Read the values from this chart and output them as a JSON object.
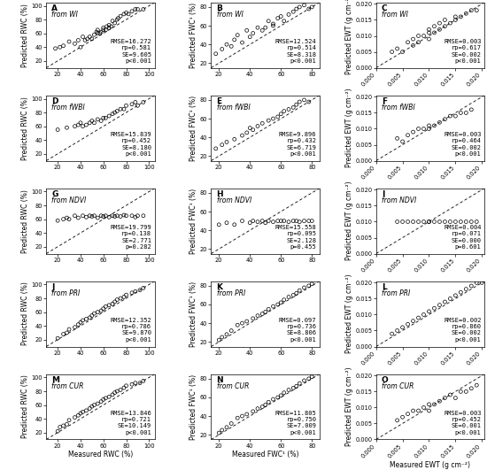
{
  "panels": [
    {
      "label": "A",
      "source": "from WI",
      "col": 0,
      "row": 0,
      "rmse": "RMSE=16.272",
      "rp": "rp=0.581",
      "se": "SE=9.605",
      "p": "p<0.001",
      "xtype": "RWC",
      "px": [
        18,
        22,
        25,
        30,
        35,
        38,
        40,
        42,
        44,
        46,
        48,
        50,
        52,
        54,
        55,
        55,
        57,
        58,
        60,
        60,
        62,
        63,
        65,
        65,
        67,
        68,
        70,
        72,
        73,
        75,
        78,
        80,
        82,
        85,
        88,
        90,
        95
      ],
      "py": [
        38,
        40,
        42,
        48,
        45,
        50,
        40,
        55,
        50,
        52,
        55,
        52,
        58,
        62,
        60,
        65,
        60,
        62,
        65,
        68,
        65,
        70,
        68,
        72,
        70,
        78,
        75,
        80,
        82,
        85,
        88,
        90,
        88,
        92,
        95,
        95,
        95
      ]
    },
    {
      "label": "B",
      "source": "from WI",
      "col": 1,
      "row": 0,
      "rmse": "RMSE=12.524",
      "rp": "rp=0.514",
      "se": "SE=8.318",
      "p": "p<0.001",
      "xtype": "FWC",
      "px": [
        18,
        22,
        25,
        28,
        30,
        32,
        35,
        38,
        40,
        42,
        45,
        48,
        50,
        52,
        55,
        55,
        58,
        60,
        62,
        65,
        68,
        70,
        72,
        75,
        78,
        80
      ],
      "py": [
        30,
        35,
        40,
        38,
        45,
        50,
        42,
        55,
        48,
        52,
        58,
        55,
        58,
        65,
        60,
        62,
        68,
        70,
        65,
        72,
        75,
        78,
        80,
        82,
        78,
        80
      ]
    },
    {
      "label": "C",
      "source": "from WI",
      "col": 2,
      "row": 0,
      "rmse": "RMSE=0.003",
      "rp": "rp=0.617",
      "se": "SE=0.002",
      "p": "p<0.001",
      "xtype": "EWT",
      "px": [
        0.003,
        0.004,
        0.005,
        0.006,
        0.007,
        0.007,
        0.008,
        0.008,
        0.009,
        0.01,
        0.01,
        0.01,
        0.011,
        0.011,
        0.012,
        0.012,
        0.013,
        0.013,
        0.014,
        0.015,
        0.015,
        0.016,
        0.017,
        0.018,
        0.019
      ],
      "py": [
        0.005,
        0.006,
        0.005,
        0.008,
        0.007,
        0.009,
        0.01,
        0.008,
        0.01,
        0.009,
        0.011,
        0.012,
        0.011,
        0.013,
        0.012,
        0.014,
        0.013,
        0.015,
        0.014,
        0.015,
        0.016,
        0.016,
        0.017,
        0.018,
        0.018
      ]
    },
    {
      "label": "D",
      "source": "from fWBI",
      "col": 0,
      "row": 1,
      "rmse": "RMSE=15.839",
      "rp": "rp=0.452",
      "se": "SE=8.180",
      "p": "p<0.001",
      "xtype": "RWC",
      "px": [
        20,
        28,
        35,
        38,
        40,
        42,
        45,
        48,
        50,
        52,
        55,
        58,
        60,
        62,
        65,
        68,
        70,
        72,
        75,
        78,
        80,
        85,
        88,
        90,
        95
      ],
      "py": [
        55,
        58,
        60,
        62,
        65,
        60,
        62,
        65,
        68,
        65,
        70,
        68,
        72,
        72,
        75,
        78,
        80,
        82,
        85,
        85,
        90,
        92,
        95,
        90,
        95
      ]
    },
    {
      "label": "E",
      "source": "from fWBI",
      "col": 1,
      "row": 1,
      "rmse": "RMSE=9.896",
      "rp": "rp=0.432",
      "se": "SE=6.719",
      "p": "p<0.001",
      "xtype": "FWC",
      "px": [
        18,
        22,
        25,
        30,
        35,
        38,
        40,
        42,
        45,
        48,
        52,
        55,
        58,
        60,
        62,
        65,
        68,
        70,
        72,
        75,
        78
      ],
      "py": [
        28,
        32,
        35,
        38,
        42,
        45,
        50,
        48,
        52,
        55,
        58,
        60,
        62,
        65,
        68,
        70,
        72,
        75,
        78,
        80,
        78
      ]
    },
    {
      "label": "F",
      "source": "from fWBI",
      "col": 2,
      "row": 1,
      "rmse": "RMSE=0.003",
      "rp": "rp=0.464",
      "se": "SE=0.002",
      "p": "p<0.001",
      "xtype": "EWT",
      "px": [
        0.004,
        0.005,
        0.006,
        0.007,
        0.008,
        0.009,
        0.01,
        0.01,
        0.011,
        0.012,
        0.013,
        0.014,
        0.015,
        0.016,
        0.017,
        0.018
      ],
      "py": [
        0.007,
        0.006,
        0.008,
        0.009,
        0.01,
        0.01,
        0.01,
        0.011,
        0.011,
        0.012,
        0.013,
        0.014,
        0.014,
        0.015,
        0.015,
        0.016
      ]
    },
    {
      "label": "G",
      "source": "from NDVI",
      "col": 0,
      "row": 2,
      "rmse": "RMSE=19.799",
      "rp": "rp=0.138",
      "se": "SE=2.771",
      "p": "p=0.282",
      "xtype": "RWC",
      "px": [
        20,
        25,
        28,
        30,
        35,
        38,
        42,
        45,
        48,
        50,
        52,
        55,
        58,
        60,
        62,
        65,
        68,
        70,
        72,
        75,
        78,
        80,
        85,
        88,
        90,
        95
      ],
      "py": [
        58,
        60,
        62,
        60,
        65,
        62,
        65,
        63,
        65,
        64,
        65,
        62,
        65,
        64,
        65,
        63,
        65,
        64,
        65,
        64,
        66,
        65,
        65,
        63,
        65,
        65
      ]
    },
    {
      "label": "H",
      "source": "from NDVI",
      "col": 1,
      "row": 2,
      "rmse": "RMSE=15.558",
      "rp": "rp=0.095",
      "se": "SE=2.128",
      "p": "p=0.455",
      "xtype": "FWC",
      "px": [
        20,
        25,
        30,
        35,
        40,
        42,
        45,
        48,
        50,
        52,
        55,
        58,
        60,
        62,
        65,
        68,
        70,
        72,
        75,
        78,
        80
      ],
      "py": [
        46,
        48,
        46,
        50,
        48,
        50,
        49,
        50,
        48,
        50,
        49,
        50,
        50,
        50,
        49,
        50,
        50,
        49,
        50,
        50,
        50
      ]
    },
    {
      "label": "I",
      "source": "from NDVI",
      "col": 2,
      "row": 2,
      "rmse": "RMSE=0.004",
      "rp": "rp=0.071",
      "se": "SE=0.000",
      "p": "p=0.601",
      "xtype": "EWT",
      "px": [
        0.004,
        0.005,
        0.006,
        0.007,
        0.008,
        0.009,
        0.01,
        0.01,
        0.011,
        0.012,
        0.013,
        0.014,
        0.015,
        0.016,
        0.017,
        0.018,
        0.019
      ],
      "py": [
        0.01,
        0.01,
        0.01,
        0.01,
        0.01,
        0.01,
        0.01,
        0.01,
        0.01,
        0.01,
        0.01,
        0.01,
        0.01,
        0.01,
        0.01,
        0.01,
        0.01
      ]
    },
    {
      "label": "J",
      "source": "from PRI",
      "col": 0,
      "row": 3,
      "rmse": "RMSE=12.352",
      "rp": "rp=0.786",
      "se": "SE=9.870",
      "p": "p<0.001",
      "xtype": "RWC",
      "px": [
        20,
        25,
        28,
        30,
        35,
        38,
        40,
        42,
        45,
        48,
        50,
        52,
        55,
        58,
        60,
        62,
        65,
        68,
        70,
        72,
        75,
        78,
        80,
        85,
        88,
        92,
        95
      ],
      "py": [
        22,
        28,
        30,
        35,
        38,
        42,
        45,
        48,
        50,
        52,
        55,
        58,
        60,
        62,
        65,
        68,
        70,
        72,
        75,
        78,
        80,
        82,
        85,
        88,
        90,
        92,
        95
      ]
    },
    {
      "label": "K",
      "source": "from PRI",
      "col": 1,
      "row": 3,
      "rmse": "RMSE=0.097",
      "rp": "rp=0.736",
      "se": "SE=8.806",
      "p": "p<0.001",
      "xtype": "FWC",
      "px": [
        20,
        22,
        25,
        28,
        32,
        35,
        38,
        42,
        45,
        48,
        50,
        52,
        55,
        58,
        60,
        62,
        65,
        68,
        70,
        72,
        75,
        78,
        80
      ],
      "py": [
        22,
        25,
        28,
        32,
        38,
        40,
        42,
        45,
        48,
        50,
        52,
        55,
        58,
        60,
        62,
        65,
        68,
        70,
        72,
        75,
        78,
        80,
        82
      ]
    },
    {
      "label": "L",
      "source": "from PRI",
      "col": 2,
      "row": 3,
      "rmse": "RMSE=0.002",
      "rp": "rp=0.860",
      "se": "SE=0.002",
      "p": "p<0.001",
      "xtype": "EWT",
      "px": [
        0.003,
        0.004,
        0.005,
        0.006,
        0.007,
        0.008,
        0.009,
        0.01,
        0.011,
        0.012,
        0.013,
        0.014,
        0.015,
        0.016,
        0.017,
        0.018,
        0.019,
        0.02
      ],
      "py": [
        0.004,
        0.005,
        0.006,
        0.007,
        0.008,
        0.009,
        0.01,
        0.011,
        0.012,
        0.013,
        0.014,
        0.015,
        0.016,
        0.017,
        0.018,
        0.019,
        0.02,
        0.02
      ]
    },
    {
      "label": "M",
      "source": "from CUR",
      "col": 0,
      "row": 4,
      "rmse": "RMSE=13.846",
      "rp": "rp=0.721",
      "se": "SE=10.149",
      "p": "p<0.001",
      "xtype": "RWC",
      "px": [
        20,
        22,
        25,
        28,
        30,
        35,
        38,
        40,
        42,
        45,
        48,
        50,
        52,
        55,
        58,
        60,
        62,
        65,
        68,
        70,
        72,
        75,
        78,
        80,
        85,
        88,
        92,
        95
      ],
      "py": [
        22,
        28,
        30,
        32,
        38,
        42,
        45,
        48,
        50,
        52,
        55,
        58,
        60,
        62,
        65,
        68,
        70,
        72,
        75,
        78,
        80,
        82,
        85,
        88,
        90,
        92,
        92,
        95
      ]
    },
    {
      "label": "N",
      "source": "from CUR",
      "col": 1,
      "row": 4,
      "rmse": "RMSE=11.805",
      "rp": "rp=0.750",
      "se": "SE=7.009",
      "p": "p<0.001",
      "xtype": "FWC",
      "px": [
        20,
        22,
        25,
        28,
        32,
        35,
        38,
        42,
        45,
        48,
        50,
        52,
        55,
        58,
        60,
        62,
        65,
        68,
        70,
        72,
        75,
        78,
        80
      ],
      "py": [
        22,
        25,
        28,
        32,
        38,
        40,
        42,
        45,
        48,
        50,
        52,
        55,
        58,
        60,
        62,
        65,
        68,
        70,
        72,
        75,
        78,
        80,
        82
      ]
    },
    {
      "label": "O",
      "source": "from CUR",
      "col": 2,
      "row": 4,
      "rmse": "RMSE=0.003",
      "rp": "rp=0.452",
      "se": "SE=0.001",
      "p": "p<0.001",
      "xtype": "EWT",
      "px": [
        0.004,
        0.005,
        0.006,
        0.007,
        0.008,
        0.009,
        0.01,
        0.01,
        0.011,
        0.012,
        0.013,
        0.014,
        0.015,
        0.016,
        0.017,
        0.018,
        0.019
      ],
      "py": [
        0.006,
        0.007,
        0.008,
        0.009,
        0.009,
        0.01,
        0.009,
        0.011,
        0.011,
        0.012,
        0.013,
        0.014,
        0.013,
        0.015,
        0.015,
        0.016,
        0.017
      ]
    }
  ],
  "axis_config": {
    "RWC": {
      "xlim": [
        10,
        105
      ],
      "ylim": [
        10,
        105
      ],
      "xticks": [
        20,
        40,
        60,
        80,
        100
      ],
      "yticks": [
        20,
        40,
        60,
        80,
        100
      ],
      "xlabel": "Measured RWC (%)",
      "ylabel": "Predicted RWC (%)"
    },
    "FWC": {
      "xlim": [
        15,
        85
      ],
      "ylim": [
        15,
        85
      ],
      "xticks": [
        20,
        40,
        60,
        80
      ],
      "yticks": [
        20,
        40,
        60,
        80
      ],
      "xlabel": "Measured FWC¹ (%)",
      "ylabel": "Predicted FWC¹ (%)"
    },
    "EWT": {
      "xlim": [
        0.0,
        0.0205
      ],
      "ylim": [
        0.0,
        0.0205
      ],
      "xticks": [
        0.0,
        0.005,
        0.01,
        0.015,
        0.02
      ],
      "yticks": [
        0.0,
        0.005,
        0.01,
        0.015,
        0.02
      ],
      "xlabel": "Measured EWT (g cm⁻²)",
      "ylabel": "Predicted EWT (g cm⁻²)"
    }
  },
  "stats_fontsize": 5.0,
  "label_fontsize": 6.5,
  "source_fontsize": 5.5,
  "tick_fontsize": 4.8,
  "axis_label_fontsize": 5.5,
  "marker_size": 8,
  "marker_lw": 0.5
}
